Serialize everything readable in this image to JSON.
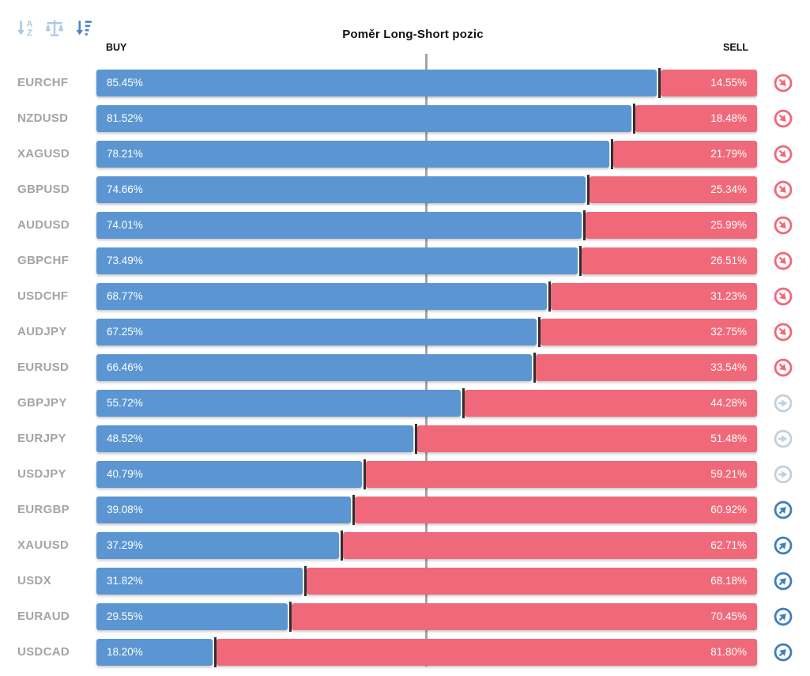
{
  "title": "Poměr Long-Short pozic",
  "columns": {
    "buy": "BUY",
    "sell": "SELL"
  },
  "toolbar": {
    "icons": [
      {
        "name": "sort-alphabetical-icon",
        "state": "inactive"
      },
      {
        "name": "sort-balance-icon",
        "state": "inactive"
      },
      {
        "name": "sort-by-value-icon",
        "state": "active"
      }
    ]
  },
  "icons": {
    "sentiment_down": "arrow-down-right-circle-icon",
    "sentiment_neutral": "arrow-right-circle-icon",
    "sentiment_up": "arrow-up-right-circle-icon"
  },
  "colors": {
    "buy_bar": "#5b96d2",
    "sell_bar": "#f0697a",
    "divider": "#2f2f2f",
    "center_line": "#a5a5a5",
    "symbol_label": "#a4a4a4",
    "icon_down": "#f0697a",
    "icon_neutral": "#c3cfdc",
    "icon_up": "#3f7fc1",
    "toolbar_icon_inactive": "#abc7e6",
    "toolbar_icon_active": "#4c86c4"
  },
  "rows": [
    {
      "symbol": "EURCHF",
      "buy": "85.45%",
      "sell": "14.55%",
      "buy_pct": 85.45,
      "sell_pct": 14.55,
      "sentiment": "down"
    },
    {
      "symbol": "NZDUSD",
      "buy": "81.52%",
      "sell": "18.48%",
      "buy_pct": 81.52,
      "sell_pct": 18.48,
      "sentiment": "down"
    },
    {
      "symbol": "XAGUSD",
      "buy": "78.21%",
      "sell": "21.79%",
      "buy_pct": 78.21,
      "sell_pct": 21.79,
      "sentiment": "down"
    },
    {
      "symbol": "GBPUSD",
      "buy": "74.66%",
      "sell": "25.34%",
      "buy_pct": 74.66,
      "sell_pct": 25.34,
      "sentiment": "down"
    },
    {
      "symbol": "AUDUSD",
      "buy": "74.01%",
      "sell": "25.99%",
      "buy_pct": 74.01,
      "sell_pct": 25.99,
      "sentiment": "down"
    },
    {
      "symbol": "GBPCHF",
      "buy": "73.49%",
      "sell": "26.51%",
      "buy_pct": 73.49,
      "sell_pct": 26.51,
      "sentiment": "down"
    },
    {
      "symbol": "USDCHF",
      "buy": "68.77%",
      "sell": "31.23%",
      "buy_pct": 68.77,
      "sell_pct": 31.23,
      "sentiment": "down"
    },
    {
      "symbol": "AUDJPY",
      "buy": "67.25%",
      "sell": "32.75%",
      "buy_pct": 67.25,
      "sell_pct": 32.75,
      "sentiment": "down"
    },
    {
      "symbol": "EURUSD",
      "buy": "66.46%",
      "sell": "33.54%",
      "buy_pct": 66.46,
      "sell_pct": 33.54,
      "sentiment": "down"
    },
    {
      "symbol": "GBPJPY",
      "buy": "55.72%",
      "sell": "44.28%",
      "buy_pct": 55.72,
      "sell_pct": 44.28,
      "sentiment": "neutral"
    },
    {
      "symbol": "EURJPY",
      "buy": "48.52%",
      "sell": "51.48%",
      "buy_pct": 48.52,
      "sell_pct": 51.48,
      "sentiment": "neutral"
    },
    {
      "symbol": "USDJPY",
      "buy": "40.79%",
      "sell": "59.21%",
      "buy_pct": 40.79,
      "sell_pct": 59.21,
      "sentiment": "neutral"
    },
    {
      "symbol": "EURGBP",
      "buy": "39.08%",
      "sell": "60.92%",
      "buy_pct": 39.08,
      "sell_pct": 60.92,
      "sentiment": "up"
    },
    {
      "symbol": "XAUUSD",
      "buy": "37.29%",
      "sell": "62.71%",
      "buy_pct": 37.29,
      "sell_pct": 62.71,
      "sentiment": "up"
    },
    {
      "symbol": "USDX",
      "buy": "31.82%",
      "sell": "68.18%",
      "buy_pct": 31.82,
      "sell_pct": 68.18,
      "sentiment": "up"
    },
    {
      "symbol": "EURAUD",
      "buy": "29.55%",
      "sell": "70.45%",
      "buy_pct": 29.55,
      "sell_pct": 70.45,
      "sentiment": "up"
    },
    {
      "symbol": "USDCAD",
      "buy": "18.20%",
      "sell": "81.80%",
      "buy_pct": 18.2,
      "sell_pct": 81.8,
      "sentiment": "up"
    }
  ],
  "chart_data": {
    "type": "bar",
    "orientation": "horizontal",
    "stacked": true,
    "title": "Poměr Long-Short pozic",
    "xlabel": "",
    "ylabel": "",
    "value_unit": "percent",
    "xlim": [
      0,
      100
    ],
    "grid": "center-line-at-50%",
    "legend_position": "top (BUY left, SELL right)",
    "categories": [
      "EURCHF",
      "NZDUSD",
      "XAGUSD",
      "GBPUSD",
      "AUDUSD",
      "GBPCHF",
      "USDCHF",
      "AUDJPY",
      "EURUSD",
      "GBPJPY",
      "EURJPY",
      "USDJPY",
      "EURGBP",
      "XAUUSD",
      "USDX",
      "EURAUD",
      "USDCAD"
    ],
    "series": [
      {
        "name": "BUY",
        "color": "#5b96d2",
        "values": [
          85.45,
          81.52,
          78.21,
          74.66,
          74.01,
          73.49,
          68.77,
          67.25,
          66.46,
          55.72,
          48.52,
          40.79,
          39.08,
          37.29,
          31.82,
          29.55,
          18.2
        ]
      },
      {
        "name": "SELL",
        "color": "#f0697a",
        "values": [
          14.55,
          18.48,
          21.79,
          25.34,
          25.99,
          26.51,
          31.23,
          32.75,
          33.54,
          44.28,
          51.48,
          59.21,
          60.92,
          62.71,
          68.18,
          70.45,
          81.8
        ]
      }
    ],
    "sentiment_markers": [
      "down",
      "down",
      "down",
      "down",
      "down",
      "down",
      "down",
      "down",
      "down",
      "neutral",
      "neutral",
      "neutral",
      "up",
      "up",
      "up",
      "up",
      "up"
    ]
  }
}
